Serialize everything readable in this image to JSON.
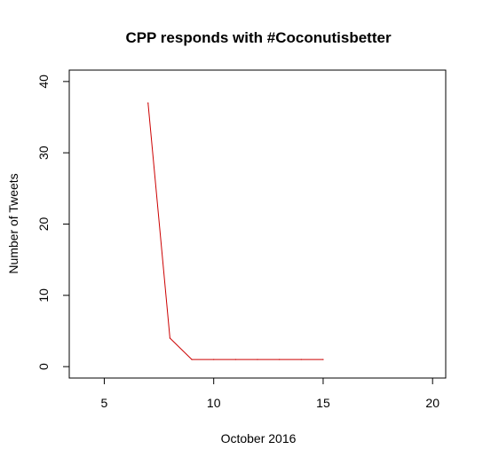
{
  "chart_data": {
    "type": "line",
    "title": "CPP responds with #Coconutisbetter",
    "xlabel": "October 2016",
    "ylabel": "Number of Tweets",
    "xlim": [
      3.4,
      20.6
    ],
    "ylim": [
      -1.6,
      41.6
    ],
    "xticks": [
      5,
      10,
      15,
      20
    ],
    "yticks": [
      0,
      10,
      20,
      30,
      40
    ],
    "grid": false,
    "line_color": "#cc0000",
    "series": [
      {
        "x": [
          7,
          8,
          9,
          10,
          11,
          12,
          13,
          14,
          15
        ],
        "values": [
          37,
          4,
          1,
          1,
          1,
          1,
          1,
          1,
          1
        ]
      }
    ]
  }
}
